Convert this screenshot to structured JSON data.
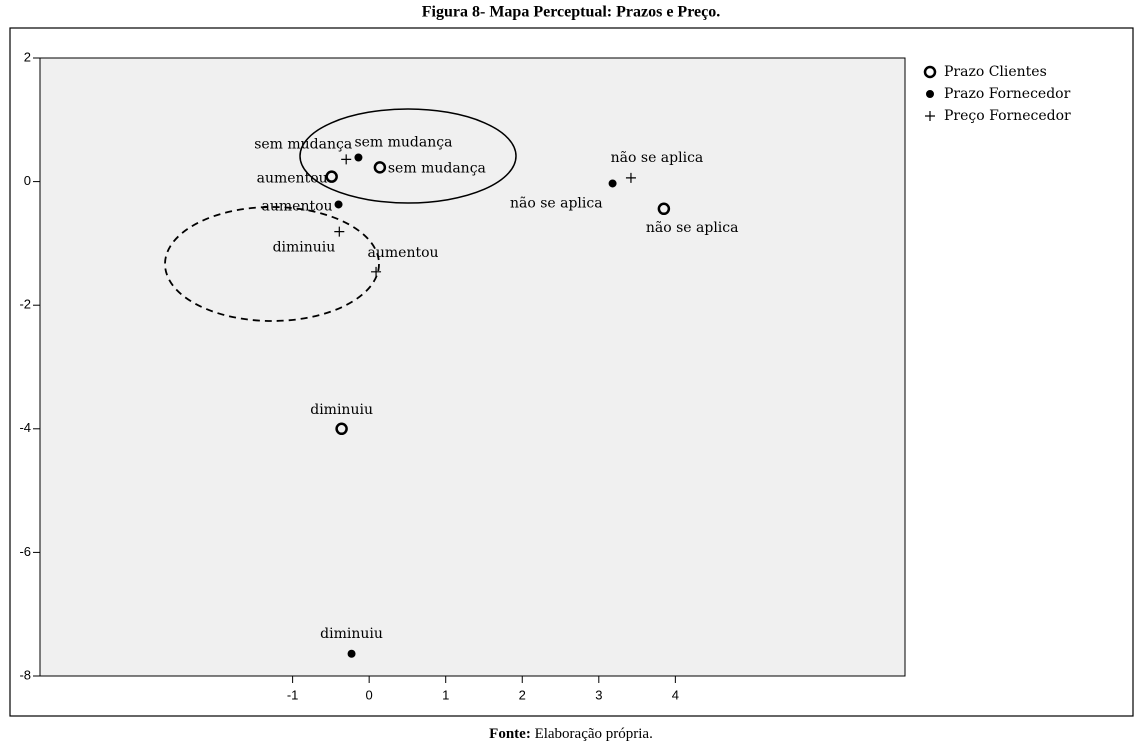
{
  "chart_data": {
    "type": "scatter",
    "title": "Figura 8- Mapa Perceptual: Prazos e Preço.",
    "source_label": "Fonte:",
    "source": "Elaboração própria.",
    "xlim": [
      -4.3,
      7
    ],
    "ylim": [
      -8,
      2
    ],
    "xticks": [
      -1,
      0,
      1,
      2,
      3,
      4
    ],
    "yticks": [
      2,
      0,
      -2,
      -4,
      -6,
      -8
    ],
    "legend": "right",
    "series": [
      {
        "name": "Prazo Clientes",
        "marker": "circle",
        "color": "#000000",
        "x": [
          -0.49,
          0.14,
          3.85,
          -0.36
        ],
        "values": [
          0.08,
          0.23,
          -0.44,
          -4.0
        ],
        "labels": [
          "aumentou",
          "sem mudança",
          "não se aplica",
          "diminuiu"
        ]
      },
      {
        "name": "Prazo Fornecedor",
        "marker": "star",
        "color": "#000000",
        "x": [
          -0.14,
          -0.4,
          3.18,
          -0.23
        ],
        "values": [
          0.39,
          -0.37,
          -0.03,
          -7.64
        ],
        "labels": [
          "sem mudança",
          "aumentou",
          "não se aplica",
          "diminuiu"
        ]
      },
      {
        "name": "Preço Fornecedor",
        "marker": "plus",
        "color": "#000000",
        "x": [
          -0.3,
          -0.39,
          0.09,
          3.42
        ],
        "values": [
          0.36,
          -0.81,
          -1.46,
          0.06
        ],
        "labels": [
          "sem mudança",
          "diminuiu",
          "aumentou",
          "não se aplica"
        ]
      }
    ]
  }
}
